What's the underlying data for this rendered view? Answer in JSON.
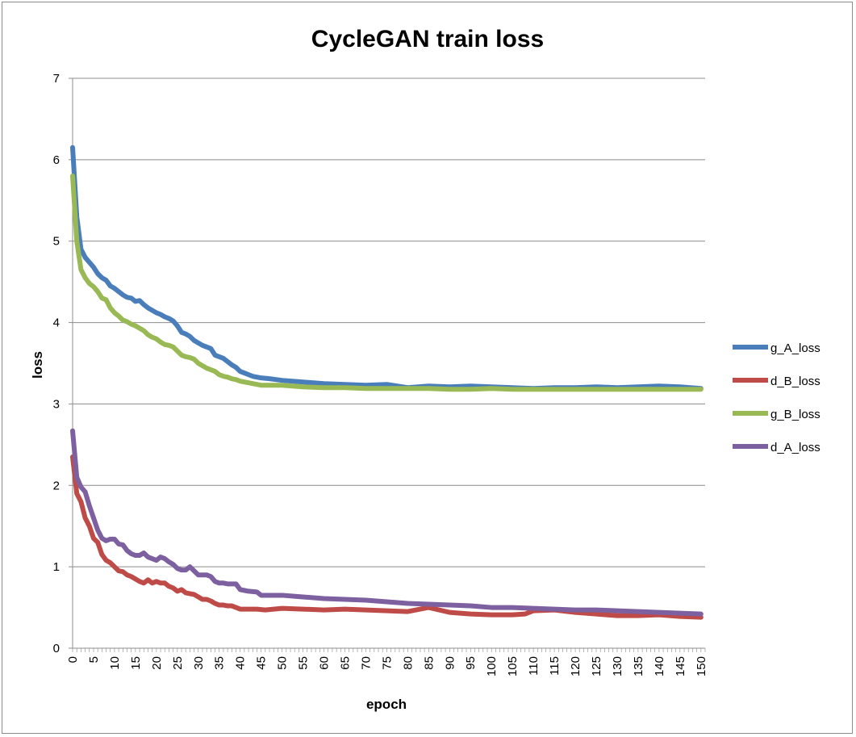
{
  "chart_data": {
    "type": "line",
    "title": "CycleGAN train loss",
    "xlabel": "epoch",
    "ylabel": "loss",
    "xlim": [
      0,
      151
    ],
    "ylim": [
      0,
      7
    ],
    "xticks": [
      0,
      5,
      10,
      15,
      20,
      25,
      30,
      35,
      40,
      45,
      50,
      55,
      60,
      65,
      70,
      75,
      80,
      85,
      90,
      95,
      100,
      105,
      110,
      115,
      120,
      125,
      130,
      135,
      140,
      145,
      150
    ],
    "yticks": [
      0,
      1,
      2,
      3,
      4,
      5,
      6,
      7
    ],
    "grid": "horizontal",
    "legend_position": "right",
    "series": [
      {
        "name": "g_A_loss",
        "color": "#4a7ebb",
        "x": [
          0,
          1,
          2,
          3,
          4,
          5,
          6,
          7,
          8,
          9,
          10,
          11,
          12,
          13,
          14,
          15,
          16,
          17,
          18,
          19,
          20,
          21,
          22,
          23,
          24,
          25,
          26,
          27,
          28,
          29,
          30,
          31,
          32,
          33,
          34,
          35,
          36,
          37,
          38,
          39,
          40,
          41,
          42,
          43,
          44,
          45,
          47,
          50,
          55,
          60,
          65,
          70,
          75,
          80,
          85,
          90,
          95,
          100,
          105,
          110,
          115,
          120,
          125,
          130,
          135,
          140,
          145,
          150
        ],
        "y": [
          6.15,
          5.3,
          4.9,
          4.8,
          4.74,
          4.68,
          4.6,
          4.55,
          4.52,
          4.45,
          4.42,
          4.38,
          4.34,
          4.31,
          4.3,
          4.26,
          4.27,
          4.22,
          4.18,
          4.15,
          4.12,
          4.1,
          4.07,
          4.05,
          4.02,
          3.96,
          3.88,
          3.86,
          3.83,
          3.78,
          3.75,
          3.72,
          3.7,
          3.68,
          3.6,
          3.58,
          3.56,
          3.52,
          3.48,
          3.45,
          3.4,
          3.38,
          3.36,
          3.34,
          3.33,
          3.32,
          3.31,
          3.29,
          3.27,
          3.25,
          3.24,
          3.23,
          3.24,
          3.2,
          3.22,
          3.21,
          3.22,
          3.21,
          3.2,
          3.19,
          3.2,
          3.2,
          3.21,
          3.2,
          3.21,
          3.22,
          3.21,
          3.19
        ]
      },
      {
        "name": "d_B_loss",
        "color": "#be4b48",
        "x": [
          0,
          1,
          2,
          3,
          4,
          5,
          6,
          7,
          8,
          9,
          10,
          11,
          12,
          13,
          14,
          15,
          16,
          17,
          18,
          19,
          20,
          21,
          22,
          23,
          24,
          25,
          26,
          27,
          28,
          29,
          30,
          31,
          32,
          33,
          34,
          35,
          36,
          37,
          38,
          39,
          40,
          42,
          44,
          46,
          48,
          50,
          55,
          60,
          65,
          70,
          75,
          80,
          82,
          85,
          90,
          95,
          100,
          105,
          108,
          110,
          115,
          120,
          125,
          130,
          135,
          140,
          145,
          150
        ],
        "y": [
          2.35,
          1.9,
          1.8,
          1.6,
          1.5,
          1.35,
          1.3,
          1.15,
          1.08,
          1.05,
          1.0,
          0.95,
          0.94,
          0.9,
          0.88,
          0.85,
          0.82,
          0.8,
          0.84,
          0.8,
          0.82,
          0.8,
          0.8,
          0.76,
          0.74,
          0.7,
          0.72,
          0.68,
          0.67,
          0.66,
          0.63,
          0.6,
          0.6,
          0.58,
          0.55,
          0.53,
          0.53,
          0.52,
          0.52,
          0.5,
          0.48,
          0.48,
          0.48,
          0.47,
          0.48,
          0.49,
          0.48,
          0.47,
          0.48,
          0.47,
          0.46,
          0.45,
          0.47,
          0.5,
          0.44,
          0.42,
          0.41,
          0.41,
          0.42,
          0.46,
          0.47,
          0.44,
          0.42,
          0.4,
          0.4,
          0.41,
          0.39,
          0.38
        ]
      },
      {
        "name": "g_B_loss",
        "color": "#98b954",
        "x": [
          0,
          1,
          2,
          3,
          4,
          5,
          6,
          7,
          8,
          9,
          10,
          11,
          12,
          13,
          14,
          15,
          16,
          17,
          18,
          19,
          20,
          21,
          22,
          23,
          24,
          25,
          26,
          27,
          28,
          29,
          30,
          31,
          32,
          33,
          34,
          35,
          36,
          37,
          38,
          39,
          40,
          41,
          42,
          43,
          44,
          45,
          50,
          55,
          60,
          65,
          70,
          75,
          80,
          85,
          90,
          95,
          100,
          105,
          110,
          115,
          120,
          125,
          130,
          135,
          140,
          145,
          150
        ],
        "y": [
          5.8,
          5.0,
          4.65,
          4.55,
          4.48,
          4.44,
          4.38,
          4.3,
          4.28,
          4.18,
          4.12,
          4.08,
          4.03,
          4.01,
          3.98,
          3.96,
          3.93,
          3.9,
          3.85,
          3.82,
          3.8,
          3.76,
          3.73,
          3.72,
          3.7,
          3.65,
          3.6,
          3.58,
          3.57,
          3.55,
          3.5,
          3.47,
          3.44,
          3.42,
          3.4,
          3.36,
          3.34,
          3.33,
          3.31,
          3.3,
          3.28,
          3.27,
          3.26,
          3.25,
          3.24,
          3.23,
          3.23,
          3.21,
          3.2,
          3.2,
          3.19,
          3.19,
          3.19,
          3.19,
          3.18,
          3.18,
          3.19,
          3.18,
          3.18,
          3.18,
          3.18,
          3.18,
          3.18,
          3.18,
          3.18,
          3.18,
          3.18
        ]
      },
      {
        "name": "d_A_loss",
        "color": "#7d60a0",
        "x": [
          0,
          1,
          2,
          3,
          4,
          5,
          6,
          7,
          8,
          9,
          10,
          11,
          12,
          13,
          14,
          15,
          16,
          17,
          18,
          19,
          20,
          21,
          22,
          23,
          24,
          25,
          26,
          27,
          28,
          29,
          30,
          31,
          32,
          33,
          34,
          35,
          36,
          37,
          38,
          39,
          40,
          42,
          44,
          45,
          50,
          55,
          60,
          65,
          70,
          75,
          80,
          85,
          90,
          95,
          100,
          105,
          110,
          115,
          120,
          125,
          130,
          135,
          140,
          145,
          150
        ],
        "y": [
          2.67,
          2.1,
          1.98,
          1.92,
          1.75,
          1.6,
          1.45,
          1.35,
          1.32,
          1.34,
          1.34,
          1.28,
          1.27,
          1.2,
          1.16,
          1.14,
          1.14,
          1.17,
          1.12,
          1.1,
          1.08,
          1.12,
          1.1,
          1.06,
          1.03,
          0.98,
          0.96,
          0.96,
          1.0,
          0.95,
          0.9,
          0.9,
          0.9,
          0.88,
          0.82,
          0.8,
          0.8,
          0.79,
          0.79,
          0.79,
          0.72,
          0.7,
          0.69,
          0.65,
          0.65,
          0.63,
          0.61,
          0.6,
          0.59,
          0.57,
          0.55,
          0.54,
          0.53,
          0.52,
          0.5,
          0.5,
          0.49,
          0.48,
          0.47,
          0.47,
          0.46,
          0.45,
          0.44,
          0.43,
          0.42
        ]
      }
    ]
  }
}
